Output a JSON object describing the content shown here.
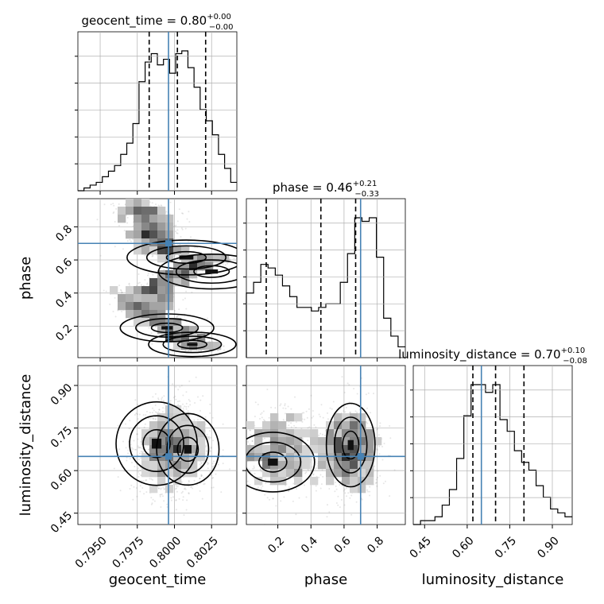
{
  "params": [
    "geocent_time",
    "phase",
    "luminosity_distance"
  ],
  "titles": [
    {
      "name": "geocent_time",
      "value": "0.80",
      "plus": "+0.00",
      "minus": "−0.00"
    },
    {
      "name": "phase",
      "value": "0.46",
      "plus": "+0.21",
      "minus": "−0.33"
    },
    {
      "name": "luminosity_distance",
      "value": "0.70",
      "plus": "+0.10",
      "minus": "−0.08"
    }
  ],
  "colors": {
    "truth": "#4682b4",
    "hist": "#000000",
    "grid": "#b0b0b0",
    "scatter": "#777777"
  },
  "chart_data": {
    "type": "corner",
    "axes": {
      "geocent_time": {
        "range": [
          0.7935,
          0.8042
        ],
        "ticks": [
          0.795,
          0.7975,
          0.8,
          0.8025
        ],
        "ticklabels": [
          "0.7950",
          "0.7975",
          "0.8000",
          "0.8025"
        ]
      },
      "phase": {
        "range": [
          0.01,
          0.97
        ],
        "ticks": [
          0.2,
          0.4,
          0.6,
          0.8
        ],
        "ticklabels": [
          "0.2",
          "0.4",
          "0.6",
          "0.8"
        ]
      },
      "luminosity_distance": {
        "range": [
          0.41,
          0.97
        ],
        "ticks": [
          0.45,
          0.6,
          0.75,
          0.9
        ],
        "ticklabels": [
          "0.45",
          "0.60",
          "0.75",
          "0.90"
        ]
      }
    },
    "truths": {
      "geocent_time": 0.7996,
      "phase": 0.7,
      "luminosity_distance": 0.65
    },
    "quantiles": {
      "geocent_time": [
        0.7983,
        0.8002,
        0.8021
      ],
      "phase": [
        0.13,
        0.46,
        0.67
      ],
      "luminosity_distance": [
        0.62,
        0.7,
        0.8
      ]
    },
    "histograms": {
      "geocent_time": {
        "edges_range": [
          0.7935,
          0.8042
        ],
        "counts": [
          0,
          1,
          2,
          3,
          5,
          7,
          9,
          13,
          17,
          24,
          39,
          46,
          49,
          45,
          47,
          42,
          49,
          50,
          44,
          37,
          29,
          25,
          20,
          13,
          8,
          3
        ]
      },
      "phase": {
        "edges_range": [
          0.01,
          0.97
        ],
        "counts": [
          18,
          21,
          26,
          25,
          23,
          20,
          17,
          14,
          14,
          13,
          14,
          15,
          15,
          21,
          29,
          39,
          38,
          39,
          28,
          11,
          6,
          3
        ]
      },
      "luminosity_distance": {
        "edges_range": [
          0.41,
          0.97
        ],
        "counts": [
          0,
          1,
          1,
          2,
          5,
          9,
          17,
          28,
          36,
          36,
          34,
          36,
          27,
          24,
          19,
          16,
          14,
          10,
          7,
          4,
          3,
          2
        ]
      }
    },
    "density_regions": [
      {
        "pair": [
          "geocent_time",
          "phase"
        ],
        "blobs": [
          {
            "x": 0.8008,
            "y": 0.615,
            "w": 0.0019,
            "h": 0.05
          },
          {
            "x": 0.8025,
            "y": 0.53,
            "w": 0.0017,
            "h": 0.05
          },
          {
            "x": 0.7995,
            "y": 0.19,
            "w": 0.0015,
            "h": 0.04
          },
          {
            "x": 0.8012,
            "y": 0.09,
            "w": 0.0014,
            "h": 0.035
          }
        ]
      },
      {
        "pair": [
          "geocent_time",
          "luminosity_distance"
        ],
        "blobs": [
          {
            "x": 0.7988,
            "y": 0.695,
            "w": 0.0013,
            "h": 0.07
          },
          {
            "x": 0.8009,
            "y": 0.675,
            "w": 0.001,
            "h": 0.06
          }
        ]
      },
      {
        "pair": [
          "phase",
          "luminosity_distance"
        ],
        "blobs": [
          {
            "x": 0.64,
            "y": 0.69,
            "w": 0.07,
            "h": 0.07
          },
          {
            "x": 0.17,
            "y": 0.63,
            "w": 0.12,
            "h": 0.05
          }
        ]
      }
    ]
  }
}
